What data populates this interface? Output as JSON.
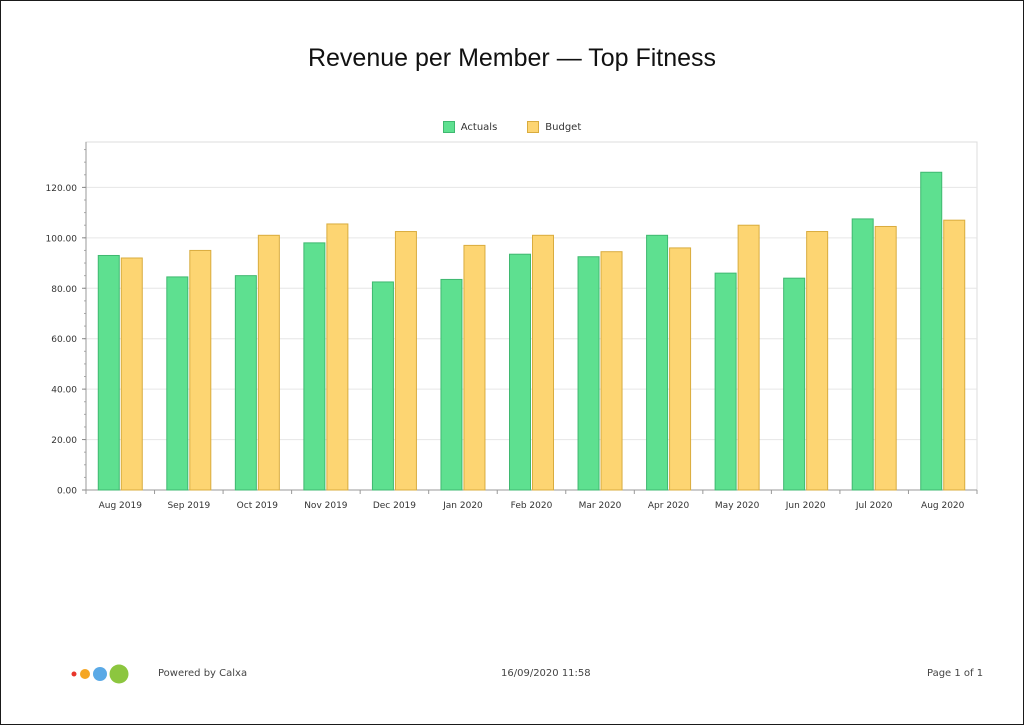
{
  "footer": {
    "powered_by": "Powered by Calxa",
    "timestamp": "16/09/2020 11:58",
    "page": "Page 1 of 1"
  },
  "colors": {
    "actuals": "#5ee090",
    "actuals_border": "#3fb870",
    "budget": "#fdd572",
    "budget_border": "#d9ac3e",
    "logo": [
      "#e8352b",
      "#f5a623",
      "#5aa9e6",
      "#8cc63f"
    ]
  },
  "chart_data": {
    "type": "bar",
    "title": "Revenue per Member — Top Fitness",
    "xlabel": "",
    "ylabel": "",
    "ylim": [
      0,
      138
    ],
    "yticks": [
      0,
      20,
      40,
      60,
      80,
      100,
      120
    ],
    "ytick_labels": [
      "0.00",
      "20.00",
      "40.00",
      "60.00",
      "80.00",
      "100.00",
      "120.00"
    ],
    "grid": true,
    "legend_position": "top-center",
    "categories": [
      "Aug 2019",
      "Sep 2019",
      "Oct 2019",
      "Nov 2019",
      "Dec 2019",
      "Jan 2020",
      "Feb 2020",
      "Mar 2020",
      "Apr 2020",
      "May 2020",
      "Jun 2020",
      "Jul 2020",
      "Aug 2020"
    ],
    "series": [
      {
        "name": "Actuals",
        "values": [
          93,
          84.5,
          85,
          98,
          82.5,
          83.5,
          93.5,
          92.5,
          101,
          86,
          84,
          107.5,
          126
        ]
      },
      {
        "name": "Budget",
        "values": [
          92,
          95,
          101,
          105.5,
          102.5,
          97,
          101,
          94.5,
          96,
          105,
          102.5,
          104.5,
          107
        ]
      }
    ]
  }
}
